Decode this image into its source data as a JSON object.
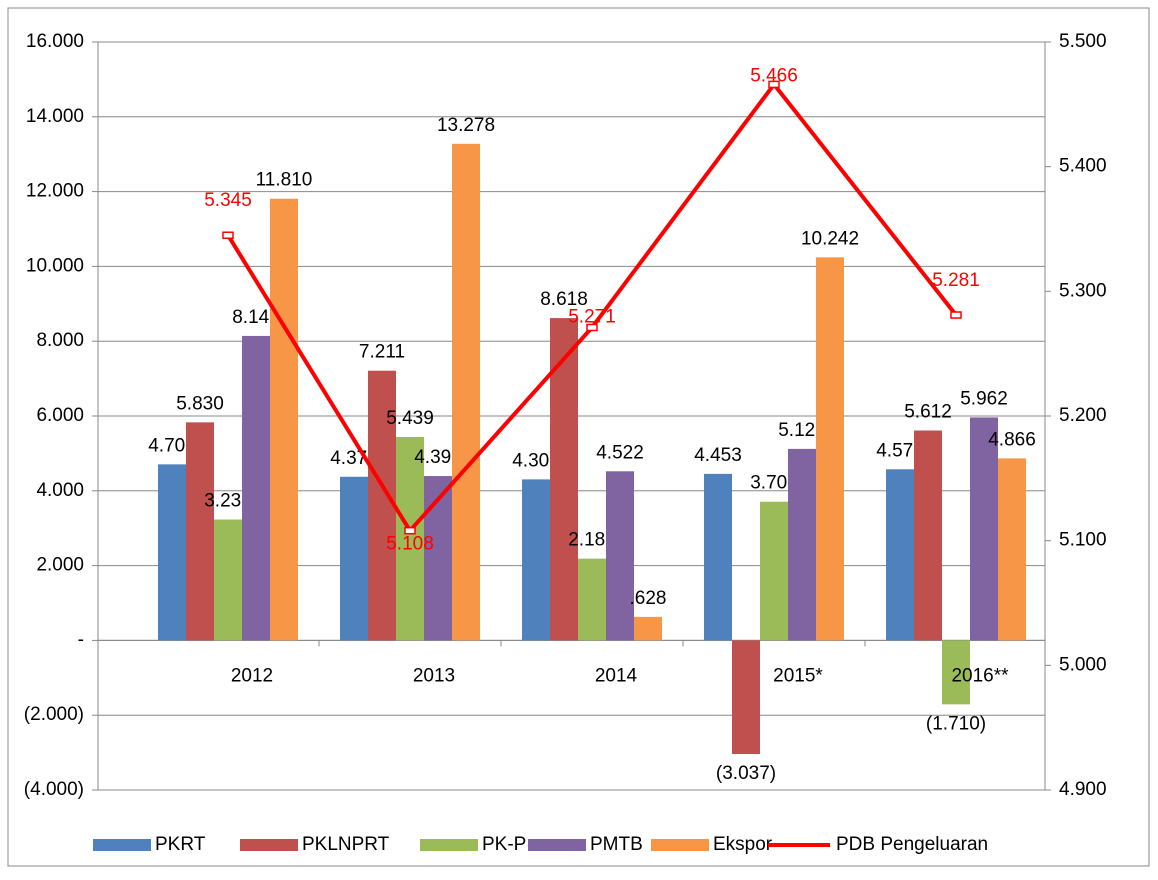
{
  "chart_data": {
    "type": "bar",
    "categories": [
      "2012",
      "2013",
      "2014",
      "2015*",
      "2016**"
    ],
    "series": [
      {
        "name": "PKRT",
        "color": "#4f81bd",
        "values": [
          4.707,
          4.375,
          4.305,
          4.453,
          4.575
        ],
        "value_labels": [
          "4.707",
          "4.375",
          "4.305",
          "4.453",
          "4.575"
        ]
      },
      {
        "name": "PKLNPRT",
        "color": "#c0504d",
        "values": [
          5.83,
          7.211,
          8.618,
          -3.037,
          5.612
        ],
        "value_labels": [
          "5.830",
          "7.211",
          "8.618",
          "(3.037)",
          "5.612"
        ]
      },
      {
        "name": "PK-P",
        "color": "#9bbb59",
        "values": [
          3.233,
          5.439,
          2.186,
          3.708,
          -1.71
        ],
        "value_labels": [
          "3.233",
          "5.439",
          "2.186",
          "3.708",
          "(1.710)"
        ]
      },
      {
        "name": "PMTB",
        "color": "#8064a2",
        "values": [
          8.141,
          4.395,
          4.522,
          5.121,
          5.962
        ],
        "value_labels": [
          "8.141",
          "4.395",
          "4.522",
          "5.121",
          "5.962"
        ]
      },
      {
        "name": "Ekspor",
        "color": "#f79646",
        "values": [
          11.81,
          13.278,
          0.628,
          10.242,
          4.866
        ],
        "value_labels": [
          "11.810",
          "13.278",
          ".628",
          "10.242",
          "4.866"
        ]
      },
      {
        "name": "PDB Pengeluaran",
        "color": "#ff0000",
        "type": "line",
        "axis": "y2",
        "values": [
          5.345,
          5.108,
          5.271,
          5.466,
          5.281
        ],
        "value_labels": [
          "5.345",
          "5.108",
          "5.271",
          "5.466",
          "5.281"
        ]
      }
    ],
    "ylim": [
      -4,
      16
    ],
    "yticks": [
      {
        "value": 16,
        "label": "16.000"
      },
      {
        "value": 14,
        "label": "14.000"
      },
      {
        "value": 12,
        "label": "12.000"
      },
      {
        "value": 10,
        "label": "10.000"
      },
      {
        "value": 8,
        "label": "8.000"
      },
      {
        "value": 6,
        "label": "6.000"
      },
      {
        "value": 4,
        "label": "4.000"
      },
      {
        "value": 2,
        "label": "2.000"
      },
      {
        "value": 0,
        "label": "-"
      },
      {
        "value": -2,
        "label": "(2.000)"
      },
      {
        "value": -4,
        "label": "(4.000)"
      }
    ],
    "y2lim": [
      4.9,
      5.5
    ],
    "y2ticks": [
      {
        "value": 5.5,
        "label": "5.500"
      },
      {
        "value": 5.4,
        "label": "5.400"
      },
      {
        "value": 5.3,
        "label": "5.300"
      },
      {
        "value": 5.2,
        "label": "5.200"
      },
      {
        "value": 5.1,
        "label": "5.100"
      },
      {
        "value": 5.0,
        "label": "5.000"
      },
      {
        "value": 4.9,
        "label": "4.900"
      }
    ],
    "grid": true,
    "legend": "bottom"
  }
}
